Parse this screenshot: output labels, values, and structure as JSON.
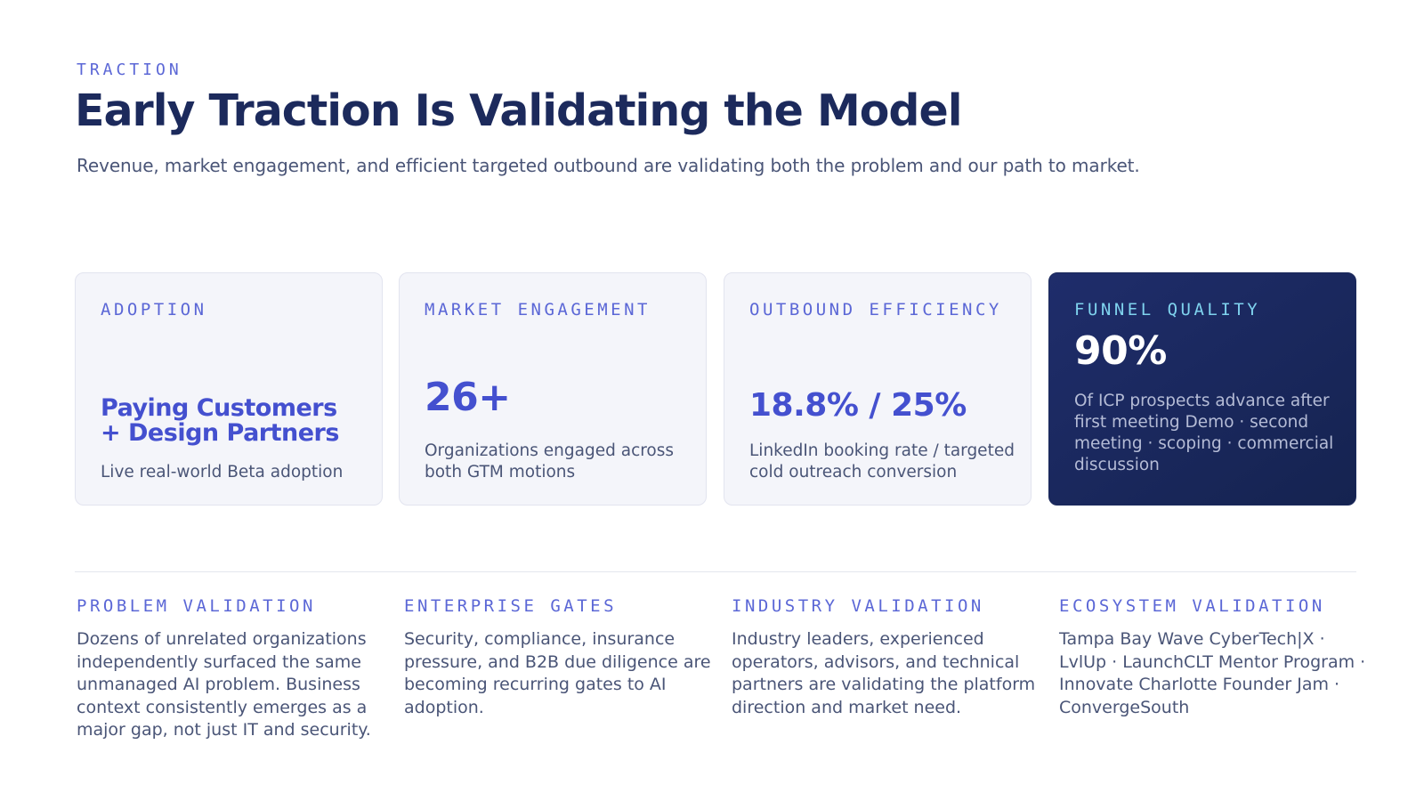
{
  "header": {
    "eyebrow": "TRACTION",
    "title": "Early Traction Is Validating the Model",
    "subtitle": "Revenue, market engagement, and efficient targeted outbound are validating both the problem and our path to market."
  },
  "cards": [
    {
      "label": "ADOPTION",
      "metric": "Paying Customers + Design Partners",
      "description": "Live real-world Beta adoption"
    },
    {
      "label": "MARKET ENGAGEMENT",
      "metric": "26+",
      "description": "Organizations engaged across both GTM motions"
    },
    {
      "label": "OUTBOUND EFFICIENCY",
      "metric": "18.8% / 25%",
      "description": "LinkedIn booking rate / targeted cold outreach conversion"
    },
    {
      "label": "FUNNEL QUALITY",
      "metric": "90%",
      "description": "Of ICP prospects advance after first meeting Demo · second meeting · scoping · commercial discussion"
    }
  ],
  "validations": [
    {
      "label": "PROBLEM VALIDATION",
      "text": "Dozens of unrelated organizations independently surfaced the same unmanaged AI problem. Business context consistently emerges as a major gap, not just IT and security."
    },
    {
      "label": "ENTERPRISE GATES",
      "text": "Security, compliance, insurance pressure, and B2B due diligence are becoming recurring gates to AI adoption."
    },
    {
      "label": "INDUSTRY VALIDATION",
      "text": "Industry leaders, experienced operators, advisors, and technical partners are validating the platform direction and market need."
    },
    {
      "label": "ECOSYSTEM VALIDATION",
      "text": "Tampa Bay Wave CyberTech|X · LvlUp · LaunchCLT Mentor Program · Innovate Charlotte Founder Jam · ConvergeSouth"
    }
  ],
  "colors": {
    "accent": "#4450cf",
    "label": "#5b67d6",
    "title": "#1c2a5c",
    "dark_card": "#1f2d6b",
    "dark_card_label": "#7fd3ee"
  }
}
